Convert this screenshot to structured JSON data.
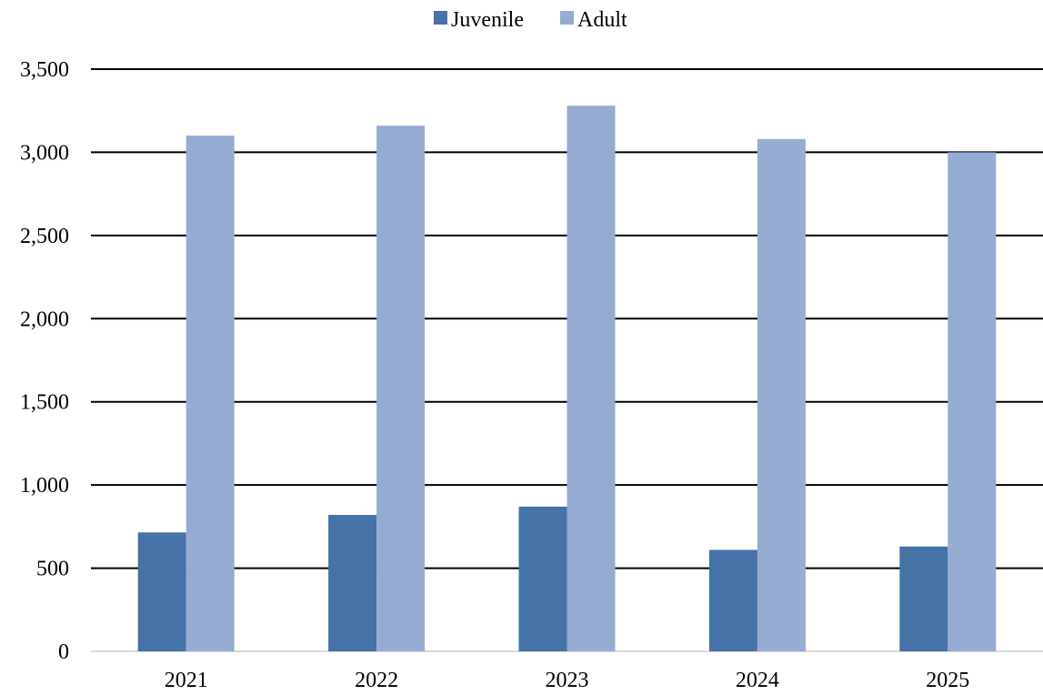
{
  "chart_data": {
    "type": "bar",
    "title": "",
    "xlabel": "",
    "ylabel": "",
    "categories": [
      "2021",
      "2022",
      "2023",
      "2024",
      "2025"
    ],
    "series": [
      {
        "name": "Juvenile",
        "color": "#4572a7",
        "values": [
          715,
          820,
          870,
          610,
          630
        ]
      },
      {
        "name": "Adult",
        "color": "#95abd2",
        "values": [
          3100,
          3160,
          3280,
          3080,
          3000
        ]
      }
    ],
    "ylim": [
      0,
      3500
    ],
    "yticks": [
      0,
      500,
      1000,
      1500,
      2000,
      2500,
      3000,
      3500
    ],
    "ytick_labels": [
      "0",
      "500",
      "1,000",
      "1,500",
      "2,000",
      "2,500",
      "3,000",
      "3,500"
    ],
    "grid": true,
    "legend_position": "top-center"
  }
}
